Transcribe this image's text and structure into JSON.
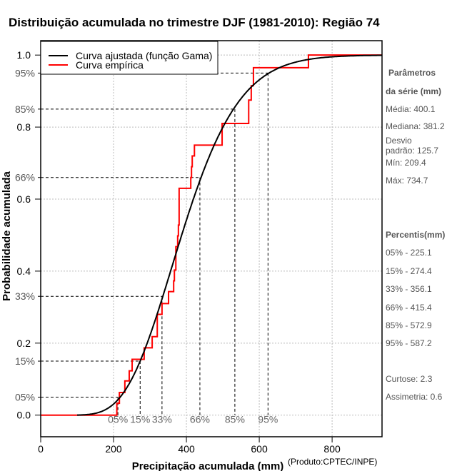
{
  "chart_data": {
    "type": "line",
    "title": "Distribuição acumulada no trimestre DJF (1981-2010): Região 74",
    "xlabel": "Precipitação acumulada (mm)",
    "ylabel": "Probabilidade acumulada",
    "credit": "(Produto:CPTEC/INPE)",
    "xlim": [
      0,
      937
    ],
    "ylim": [
      -0.06,
      1.04
    ],
    "grid": true,
    "xticks": [
      0,
      200,
      400,
      600,
      800
    ],
    "xtick_labels": [
      "0",
      "200",
      "400",
      "600",
      "800"
    ],
    "yticks": [
      0.0,
      0.2,
      0.4,
      0.6,
      0.8,
      1.0
    ],
    "ytick_labels": [
      "0.0",
      "0.2",
      "0.4",
      "0.6",
      "0.8",
      "1.0"
    ],
    "legend_position": "top-left",
    "series": [
      {
        "name": "Curva ajustada (função Gama)",
        "color": "#000000",
        "distribution": "gamma",
        "mean": 400.1,
        "sd": 125.7
      },
      {
        "name": "Curva empírica",
        "color": "#ff0000",
        "steps": [
          [
            209,
            0.033
          ],
          [
            216,
            0.063
          ],
          [
            231,
            0.095
          ],
          [
            243,
            0.123
          ],
          [
            251,
            0.155
          ],
          [
            284,
            0.187
          ],
          [
            306,
            0.218
          ],
          [
            320,
            0.28
          ],
          [
            333,
            0.31
          ],
          [
            351,
            0.343
          ],
          [
            365,
            0.373
          ],
          [
            367,
            0.403
          ],
          [
            371,
            0.468
          ],
          [
            376,
            0.498
          ],
          [
            378,
            0.528
          ],
          [
            380,
            0.63
          ],
          [
            412,
            0.66
          ],
          [
            414,
            0.69
          ],
          [
            416,
            0.72
          ],
          [
            422,
            0.75
          ],
          [
            498,
            0.81
          ],
          [
            571,
            0.875
          ],
          [
            578,
            0.915
          ],
          [
            584,
            0.965
          ],
          [
            735,
            1.0
          ]
        ]
      }
    ],
    "percentile_markers": [
      {
        "label": "05%",
        "p": 0.05,
        "x": 212
      },
      {
        "label": "15%",
        "p": 0.15,
        "x": 273
      },
      {
        "label": "33%",
        "p": 0.33,
        "x": 333
      },
      {
        "label": "66%",
        "p": 0.66,
        "x": 437
      },
      {
        "label": "85%",
        "p": 0.85,
        "x": 533
      },
      {
        "label": "95%",
        "p": 0.95,
        "x": 624
      }
    ]
  },
  "side_panel": {
    "params_title_1": "Parâmetros",
    "params_title_2": "da série (mm)",
    "media": "Média: 400.1",
    "mediana": "Mediana: 381.2",
    "desvio_1": "Desvio",
    "desvio_2": "padrão: 125.7",
    "min": "Mín: 209.4",
    "max": "Máx: 734.7",
    "percentis_title": "Percentis(mm)",
    "percentis": [
      "05% - 225.1",
      "15% - 274.4",
      "33% - 356.1",
      "66% - 415.4",
      "85% - 572.9",
      "95% - 587.2"
    ],
    "curtose": "Curtose: 2.3",
    "assimetria": "Assimetria: 0.6"
  }
}
